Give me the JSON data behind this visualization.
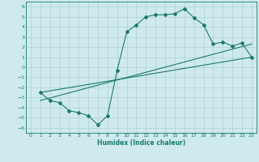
{
  "line1_x": [
    1,
    2,
    3,
    4,
    5,
    6,
    7,
    8,
    9,
    10,
    11,
    12,
    13,
    14,
    15,
    16,
    17,
    18,
    19,
    20,
    21,
    22,
    23
  ],
  "line1_y": [
    -2.5,
    -3.3,
    -3.5,
    -4.3,
    -4.5,
    -4.8,
    -5.7,
    -4.8,
    -0.3,
    3.5,
    4.2,
    5.0,
    5.2,
    5.2,
    5.3,
    5.8,
    4.9,
    4.2,
    2.3,
    2.5,
    2.1,
    2.4,
    1.0
  ],
  "line2_x": [
    1,
    23
  ],
  "line2_y": [
    -2.5,
    1.0
  ],
  "line3_x": [
    1,
    23
  ],
  "line3_y": [
    -3.3,
    2.3
  ],
  "color": "#1a7a6e",
  "bg_color": "#ceeaee",
  "grid_color": "#b8d8dc",
  "xlabel": "Humidex (Indice chaleur)",
  "ylim": [
    -6.5,
    6.5
  ],
  "xlim": [
    -0.5,
    23.5
  ],
  "yticks": [
    -6,
    -5,
    -4,
    -3,
    -2,
    -1,
    0,
    1,
    2,
    3,
    4,
    5,
    6
  ],
  "xticks": [
    0,
    1,
    2,
    3,
    4,
    5,
    6,
    7,
    8,
    9,
    10,
    11,
    12,
    13,
    14,
    15,
    16,
    17,
    18,
    19,
    20,
    21,
    22,
    23
  ]
}
